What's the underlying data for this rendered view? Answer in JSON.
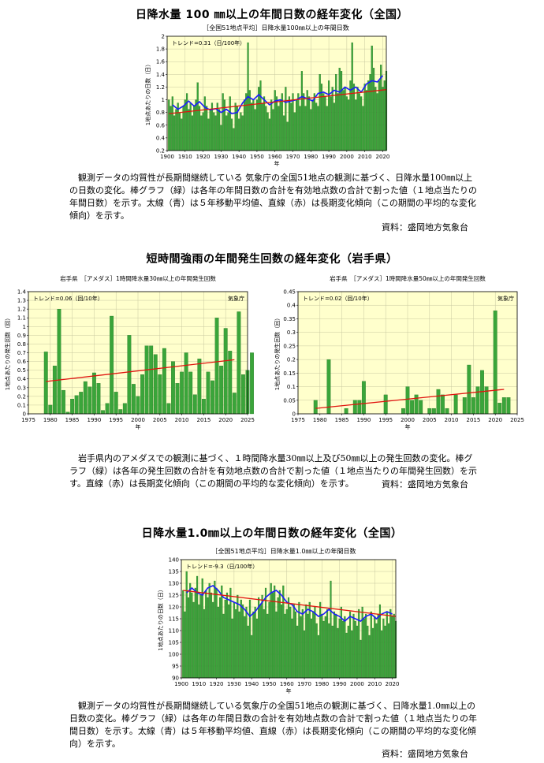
{
  "sections": [
    {
      "title": "日降水量 100 ㎜以上の年間日数の経年変化（全国）",
      "subtitle": "［全国51地点平均］日降水量100㎜以上の年間日数",
      "description": "観測データの均質性が長期間継続している 気象庁の全国51地点の観測に基づく、日降水量100㎜以上の日数の変化。棒グラフ（緑）は各年の年間日数の合計を有効地点数の合計で割った値（１地点当たりの年間日数）を示す。太線（青）は５年移動平均値、直線（赤）は長期変化傾向（この期間の平均的な変化傾向）を示す。",
      "source": "資料：盛岡地方気象台"
    },
    {
      "title": "短時間強雨の年間発生回数の経年変化（岩手県）",
      "description": "岩手県内のアメダスでの観測に基づく、１時間降水量30㎜以上及び50㎜以上の発生回数の変化。棒グラフ（緑）は各年の発生回数の合計を有効地点数の合計で割った値（１地点当たりの年間発生回数）を示す。直線（赤）は長期変化傾向（この期間の平均的な変化傾向）を示す。",
      "source": "資料：盛岡地方気象台"
    },
    {
      "title": "日降水量1.0㎜以上の年間日数の経年変化（全国）",
      "subtitle": "［全国51地点平均］日降水量1.0㎜以上の年間日数",
      "description": "観測データの均質性が長期間継続している気象庁の全国51地点の観測に基づく、日降水量1.0㎜以上の日数の変化。棒グラフ（緑）は各年の年間日数の合計を有効地点数の合計で割った値（１地点当たりの年間日数）を示す。太線（青）は５年移動平均値、直線（赤）は長期変化傾向（この期間の平均的な変化傾向）を示す。",
      "source": "資料：盛岡地方気象台"
    }
  ],
  "chart_data": [
    {
      "type": "bar",
      "title": "［全国51地点平均］日降水量100㎜以上の年間日数",
      "xlabel": "年",
      "ylabel": "1地点あたりの日数（日）",
      "trend_label": "トレンド=0.31（日/100年）",
      "xlim": [
        1900,
        2022
      ],
      "ylim": [
        0.2,
        2.0
      ],
      "xticks": [
        1900,
        1910,
        1920,
        1930,
        1940,
        1950,
        1960,
        1970,
        1980,
        1990,
        2000,
        2010,
        2020
      ],
      "yticks": [
        0.2,
        0.4,
        0.6,
        0.8,
        1.0,
        1.2,
        1.4,
        1.6,
        1.8,
        2.0
      ],
      "x_start": 1901,
      "values": [
        1.0,
        0.9,
        1.05,
        0.75,
        0.85,
        0.95,
        0.8,
        0.7,
        0.9,
        1.0,
        1.1,
        0.85,
        0.95,
        0.75,
        0.9,
        1.0,
        1.27,
        0.9,
        0.75,
        0.8,
        1.05,
        0.9,
        0.7,
        0.85,
        0.95,
        0.8,
        0.75,
        0.95,
        0.85,
        0.6,
        1.1,
        1.0,
        0.75,
        0.8,
        1.05,
        0.7,
        0.55,
        0.95,
        0.9,
        0.7,
        0.8,
        0.75,
        1.0,
        1.1,
        1.9,
        1.15,
        0.95,
        1.0,
        0.85,
        1.0,
        1.2,
        1.3,
        0.95,
        1.05,
        0.9,
        0.8,
        0.7,
        1.0,
        0.85,
        1.15,
        1.05,
        0.9,
        1.0,
        1.1,
        0.75,
        1.2,
        0.65,
        1.05,
        0.95,
        1.1,
        0.8,
        1.0,
        1.1,
        0.9,
        1.45,
        1.1,
        0.9,
        1.15,
        1.05,
        0.85,
        1.0,
        1.1,
        0.95,
        0.9,
        1.4,
        1.25,
        1.1,
        1.05,
        0.9,
        1.3,
        1.05,
        1.2,
        0.95,
        1.4,
        1.1,
        1.5,
        1.45,
        1.15,
        1.2,
        1.05,
        1.0,
        1.3,
        1.9,
        1.25,
        1.0,
        1.2,
        1.1,
        1.05,
        0.9,
        1.25,
        1.15,
        1.3,
        1.4,
        1.85,
        1.5,
        1.2,
        1.1,
        1.3,
        1.55,
        1.2,
        1.3,
        1.45
      ],
      "moving_average": [
        [
          1903,
          0.92
        ],
        [
          1906,
          0.85
        ],
        [
          1909,
          0.9
        ],
        [
          1912,
          0.98
        ],
        [
          1915,
          0.9
        ],
        [
          1918,
          0.97
        ],
        [
          1921,
          0.88
        ],
        [
          1924,
          0.84
        ],
        [
          1927,
          0.86
        ],
        [
          1930,
          0.8
        ],
        [
          1933,
          0.85
        ],
        [
          1936,
          0.78
        ],
        [
          1939,
          0.8
        ],
        [
          1942,
          0.95
        ],
        [
          1945,
          1.05
        ],
        [
          1948,
          1.0
        ],
        [
          1951,
          1.08
        ],
        [
          1954,
          1.0
        ],
        [
          1957,
          0.92
        ],
        [
          1960,
          0.98
        ],
        [
          1963,
          1.0
        ],
        [
          1966,
          0.96
        ],
        [
          1969,
          0.98
        ],
        [
          1972,
          1.0
        ],
        [
          1975,
          1.05
        ],
        [
          1978,
          1.02
        ],
        [
          1981,
          0.98
        ],
        [
          1984,
          1.1
        ],
        [
          1987,
          1.12
        ],
        [
          1990,
          1.08
        ],
        [
          1993,
          1.15
        ],
        [
          1996,
          1.12
        ],
        [
          1999,
          1.2
        ],
        [
          2002,
          1.15
        ],
        [
          2005,
          1.2
        ],
        [
          2008,
          1.12
        ],
        [
          2011,
          1.25
        ],
        [
          2014,
          1.3
        ],
        [
          2017,
          1.28
        ],
        [
          2020,
          1.38
        ]
      ],
      "trend": [
        [
          1901,
          0.78
        ],
        [
          2022,
          1.16
        ]
      ],
      "colors": {
        "bar": "#3aa53a",
        "moving_average": "#1a1aff",
        "trend": "#e0140f",
        "plot_bg": "#ffffcc"
      }
    },
    {
      "type": "bar",
      "title": "岩手県　［アメダス］1時間降水量30㎜以上の年間発生回数",
      "xlabel": "年",
      "ylabel": "1地点あたりの発生回数（回）",
      "trend_label": "トレンド=0.06（回/10年）",
      "agency_label": "気象庁",
      "xlim": [
        1975,
        2025
      ],
      "ylim": [
        0,
        1.4
      ],
      "xticks": [
        1975,
        1980,
        1985,
        1990,
        1995,
        2000,
        2005,
        2010,
        2015,
        2020,
        2025
      ],
      "yticks": [
        0,
        0.1,
        0.2,
        0.3,
        0.4,
        0.5,
        0.6,
        0.7,
        0.8,
        0.9,
        1.0,
        1.1,
        1.2,
        1.3,
        1.4
      ],
      "x_start": 1979,
      "values": [
        0.71,
        0.1,
        0.55,
        1.2,
        0.27,
        0.02,
        0.17,
        0.21,
        0.25,
        0.37,
        0.31,
        0.47,
        0.35,
        0.04,
        0.12,
        1.12,
        0.25,
        0.05,
        0.12,
        0.9,
        0.34,
        0.2,
        0.45,
        0.78,
        0.78,
        0.68,
        0.45,
        0.75,
        0.12,
        0.6,
        0.35,
        0.48,
        0.7,
        0.48,
        0.22,
        0.63,
        0.17,
        0.48,
        0.38,
        1.1,
        0.55,
        0.98,
        0.72,
        0.24,
        1.17,
        0.45,
        0.5,
        0.7
      ],
      "trend": [
        [
          1979,
          0.37
        ],
        [
          2022,
          0.62
        ]
      ],
      "colors": {
        "bar": "#3aa53a",
        "trend": "#e0140f",
        "plot_bg": "#ffffcc"
      }
    },
    {
      "type": "bar",
      "title": "岩手県　［アメダス］1時間降水量50㎜以上の年間発生回数",
      "xlabel": "年",
      "ylabel": "1地点あたりの発生回数（回）",
      "trend_label": "トレンド=0.02（回/10年）",
      "agency_label": "気象庁",
      "xlim": [
        1975,
        2025
      ],
      "ylim": [
        0,
        0.45
      ],
      "xticks": [
        1975,
        1980,
        1985,
        1990,
        1995,
        2000,
        2005,
        2010,
        2015,
        2020,
        2025
      ],
      "yticks": [
        0,
        0.05,
        0.1,
        0.15,
        0.2,
        0.25,
        0.3,
        0.35,
        0.4,
        0.45
      ],
      "x_start": 1979,
      "values": [
        0.05,
        0,
        0,
        0.2,
        0,
        0,
        0,
        0.02,
        0,
        0.05,
        0.05,
        0.12,
        0,
        0,
        0,
        0,
        0.07,
        0,
        0,
        0,
        0.02,
        0.1,
        0.05,
        0.07,
        0.05,
        0,
        0.02,
        0.02,
        0.09,
        0.07,
        0.02,
        0,
        0.07,
        0,
        0.06,
        0.18,
        0.06,
        0.1,
        0.16,
        0.1,
        0,
        0.38,
        0.04,
        0.06,
        0.06
      ],
      "trend": [
        [
          1979,
          0.02
        ],
        [
          2022,
          0.09
        ]
      ],
      "colors": {
        "bar": "#3aa53a",
        "trend": "#e0140f",
        "plot_bg": "#ffffcc"
      }
    },
    {
      "type": "bar",
      "title": "［全国51地点平均］日降水量1.0㎜以上の年間日数",
      "xlabel": "年",
      "ylabel": "1地点あたりの日数（日）",
      "trend_label": "トレンド=-9.3（日/100年）",
      "xlim": [
        1900,
        2022
      ],
      "ylim": [
        90,
        140
      ],
      "xticks": [
        1900,
        1910,
        1920,
        1930,
        1940,
        1950,
        1960,
        1970,
        1980,
        1990,
        2000,
        2010,
        2020
      ],
      "yticks": [
        90,
        95,
        100,
        105,
        110,
        115,
        120,
        125,
        130,
        135,
        140
      ],
      "x_start": 1901,
      "values": [
        127,
        118,
        135,
        124,
        130,
        126,
        122,
        128,
        133,
        121,
        125,
        132,
        119,
        127,
        124,
        130,
        126,
        122,
        131,
        128,
        120,
        124,
        129,
        117,
        123,
        126,
        121,
        128,
        115,
        122,
        119,
        125,
        118,
        123,
        121,
        116,
        120,
        112,
        123,
        108,
        118,
        120,
        115,
        124,
        121,
        125,
        119,
        128,
        117,
        122,
        130,
        126,
        129,
        118,
        124,
        127,
        121,
        129,
        117,
        119,
        124,
        120,
        115,
        121,
        118,
        112,
        122,
        116,
        119,
        110,
        121,
        117,
        122,
        115,
        118,
        120,
        113,
        108,
        122,
        117,
        114,
        116,
        119,
        113,
        131,
        112,
        118,
        117,
        111,
        115,
        120,
        114,
        116,
        109,
        112,
        118,
        110,
        117,
        114,
        112,
        119,
        106,
        120,
        115,
        117,
        112,
        108,
        118,
        111,
        116,
        113,
        117,
        121,
        110,
        115,
        112,
        118,
        113,
        119,
        116,
        117,
        114
      ],
      "moving_average": [
        [
          1903,
          126
        ],
        [
          1906,
          128
        ],
        [
          1909,
          126
        ],
        [
          1912,
          125
        ],
        [
          1915,
          128
        ],
        [
          1918,
          129
        ],
        [
          1921,
          127
        ],
        [
          1924,
          124
        ],
        [
          1927,
          123
        ],
        [
          1930,
          122
        ],
        [
          1933,
          121
        ],
        [
          1936,
          119
        ],
        [
          1939,
          116
        ],
        [
          1942,
          118
        ],
        [
          1945,
          121
        ],
        [
          1948,
          124
        ],
        [
          1951,
          126
        ],
        [
          1954,
          127
        ],
        [
          1957,
          125
        ],
        [
          1960,
          122
        ],
        [
          1963,
          121
        ],
        [
          1966,
          118
        ],
        [
          1969,
          117
        ],
        [
          1972,
          119
        ],
        [
          1975,
          118
        ],
        [
          1978,
          116
        ],
        [
          1981,
          117
        ],
        [
          1984,
          119
        ],
        [
          1987,
          117
        ],
        [
          1990,
          116
        ],
        [
          1993,
          114
        ],
        [
          1996,
          116
        ],
        [
          1999,
          115
        ],
        [
          2002,
          114
        ],
        [
          2005,
          116
        ],
        [
          2008,
          117
        ],
        [
          2011,
          115
        ],
        [
          2014,
          117
        ],
        [
          2017,
          118
        ],
        [
          2020,
          117
        ]
      ],
      "trend": [
        [
          1901,
          127
        ],
        [
          2022,
          116
        ]
      ],
      "colors": {
        "bar": "#3aa53a",
        "moving_average": "#1a1aff",
        "trend": "#e0140f",
        "plot_bg": "#ffffcc"
      }
    }
  ]
}
